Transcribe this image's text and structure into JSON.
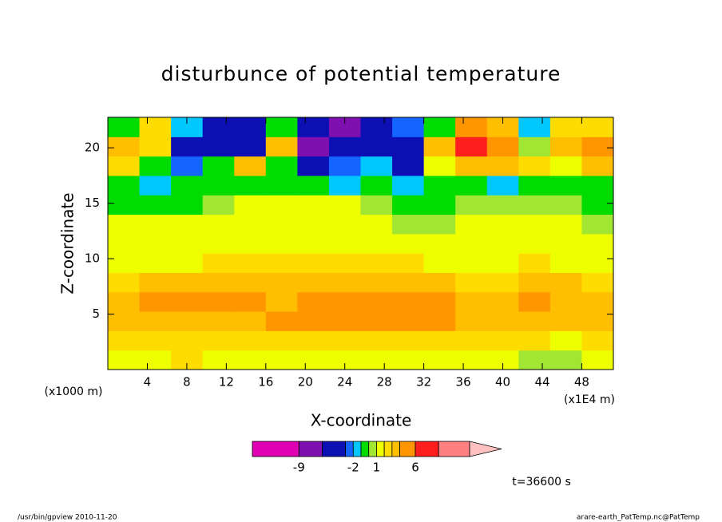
{
  "chart_data": {
    "type": "contour",
    "title": "disturbunce of potential temperature",
    "x_label": "X-coordinate",
    "y_label": "Z-coordinate",
    "x_unit": "(x1E4 m)",
    "y_unit": "(x1000 m)",
    "annotation": "t=36600 s",
    "footer_left": "/usr/bin/gpview  2010-11-20",
    "footer_right": "arare-earth_PatTemp.nc@PatTemp",
    "xlim": [
      0,
      51.2
    ],
    "ylim": [
      0,
      22.75
    ],
    "xticks": [
      4,
      8,
      12,
      16,
      20,
      24,
      28,
      32,
      36,
      40,
      44,
      48
    ],
    "yticks": [
      5,
      10,
      15,
      20
    ],
    "x": [
      1.6,
      4.8,
      8,
      11.2,
      14.4,
      17.6,
      20.8,
      24,
      27.2,
      30.4,
      33.6,
      36.8,
      40,
      43.2,
      46.4,
      49.6
    ],
    "y": [
      0.875,
      2.625,
      4.375,
      6.125,
      7.875,
      9.625,
      11.375,
      13.125,
      14.875,
      16.625,
      18.375,
      20.125,
      21.875
    ],
    "z": [
      [
        1.5,
        1.5,
        2.5,
        1.5,
        1.5,
        1.5,
        1.5,
        1.5,
        1.5,
        1.5,
        1.5,
        1.5,
        1.5,
        0.5,
        0.5,
        1.5
      ],
      [
        2.5,
        2.5,
        2.5,
        2.5,
        2.5,
        2.5,
        2.5,
        2.5,
        2.5,
        2.5,
        2.5,
        2.5,
        2.5,
        2.5,
        1.5,
        2.5
      ],
      [
        3.5,
        3.5,
        3.5,
        3.5,
        3.5,
        5,
        5,
        5,
        5,
        5,
        5,
        3.5,
        3.5,
        3.5,
        3.5,
        3.5
      ],
      [
        3.5,
        5,
        5,
        5,
        5,
        3.5,
        5,
        5,
        5,
        5,
        5,
        3.5,
        3.5,
        5,
        3.5,
        3.5
      ],
      [
        2.5,
        3.5,
        3.5,
        3.5,
        3.5,
        3.5,
        3.5,
        3.5,
        3.5,
        3.5,
        3.5,
        2.5,
        2.5,
        3.5,
        3.5,
        2.5
      ],
      [
        1.5,
        1.5,
        1.5,
        2.5,
        2.5,
        2.5,
        2.5,
        2.5,
        2.5,
        2.5,
        1.5,
        1.5,
        1.5,
        2.5,
        1.5,
        1.5
      ],
      [
        1.5,
        1.5,
        1.5,
        1.5,
        1.5,
        1.5,
        1.5,
        1.5,
        1.5,
        1.5,
        1.5,
        1.5,
        1.5,
        1.5,
        1.5,
        1.5
      ],
      [
        1.5,
        1.5,
        1.5,
        1.5,
        1.5,
        1.5,
        1.5,
        1.5,
        1.5,
        0.5,
        0.5,
        1.5,
        1.5,
        1.5,
        1.5,
        0.5
      ],
      [
        -0.5,
        -0.5,
        -0.5,
        0.5,
        1.5,
        1.5,
        1.5,
        1.5,
        0.5,
        -0.5,
        -0.5,
        0.5,
        0.5,
        0.5,
        0.5,
        -0.5
      ],
      [
        -0.5,
        -1.5,
        -0.5,
        -0.5,
        -0.5,
        -0.5,
        -0.5,
        -1.5,
        -0.5,
        -1.5,
        -0.5,
        -0.5,
        -1.5,
        -0.5,
        -0.5,
        -0.5
      ],
      [
        2.5,
        -0.5,
        -2.5,
        -0.5,
        3.5,
        -0.5,
        -4,
        -2.5,
        -1.5,
        -4,
        1.5,
        3.5,
        3.5,
        2.5,
        1.5,
        3.5
      ],
      [
        3.5,
        2.5,
        -4,
        -4,
        -4,
        3.5,
        -7,
        -4,
        -4,
        -4,
        3.5,
        7,
        5,
        0.5,
        3.5,
        5
      ],
      [
        -0.5,
        2.5,
        -1.5,
        -4,
        -4,
        -0.5,
        -4,
        -7,
        -4,
        -2.5,
        -0.5,
        5,
        3.5,
        -1.5,
        2.5,
        2.5
      ]
    ],
    "levels": [
      -15,
      -9,
      -6,
      -3,
      -2,
      -1,
      0,
      1,
      2,
      3,
      4,
      6,
      9,
      13
    ],
    "colors": [
      "#e000b4",
      "#7f10b0",
      "#0c10b4",
      "#1464ff",
      "#00c8ff",
      "#00dc00",
      "#a0e632",
      "#eeff00",
      "#ffdc00",
      "#ffbe00",
      "#ff9600",
      "#ff1e1e",
      "#ff8080",
      "#ffc0c0"
    ],
    "colorbar_ticks": [
      -9,
      -2,
      1,
      6
    ]
  }
}
